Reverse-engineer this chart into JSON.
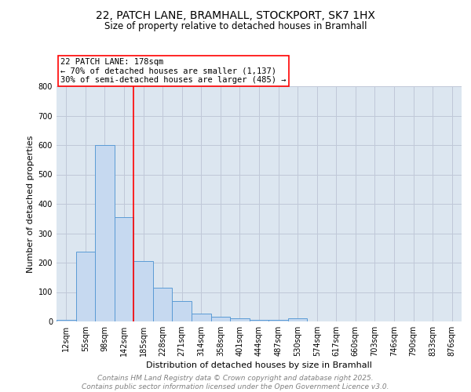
{
  "title1": "22, PATCH LANE, BRAMHALL, STOCKPORT, SK7 1HX",
  "title2": "Size of property relative to detached houses in Bramhall",
  "xlabel": "Distribution of detached houses by size in Bramhall",
  "ylabel": "Number of detached properties",
  "categories": [
    "12sqm",
    "55sqm",
    "98sqm",
    "142sqm",
    "185sqm",
    "228sqm",
    "271sqm",
    "314sqm",
    "358sqm",
    "401sqm",
    "444sqm",
    "487sqm",
    "530sqm",
    "574sqm",
    "617sqm",
    "660sqm",
    "703sqm",
    "746sqm",
    "790sqm",
    "833sqm",
    "876sqm"
  ],
  "values": [
    5,
    238,
    600,
    355,
    205,
    115,
    70,
    27,
    15,
    10,
    5,
    5,
    10,
    0,
    0,
    0,
    0,
    0,
    0,
    0,
    0
  ],
  "bar_color": "#c6d9f0",
  "bar_edge_color": "#5b9bd5",
  "grid_color": "#c0c8d8",
  "background_color": "#dce6f0",
  "vline_x": 3.5,
  "vline_color": "red",
  "annotation_line1": "22 PATCH LANE: 178sqm",
  "annotation_line2": "← 70% of detached houses are smaller (1,137)",
  "annotation_line3": "30% of semi-detached houses are larger (485) →",
  "ylim": [
    0,
    800
  ],
  "yticks": [
    0,
    100,
    200,
    300,
    400,
    500,
    600,
    700,
    800
  ],
  "footer1": "Contains HM Land Registry data © Crown copyright and database right 2025.",
  "footer2": "Contains public sector information licensed under the Open Government Licence v3.0.",
  "title_fontsize": 10,
  "subtitle_fontsize": 8.5,
  "axis_label_fontsize": 8,
  "tick_fontsize": 7,
  "annotation_fontsize": 7.5,
  "footer_fontsize": 6.5
}
